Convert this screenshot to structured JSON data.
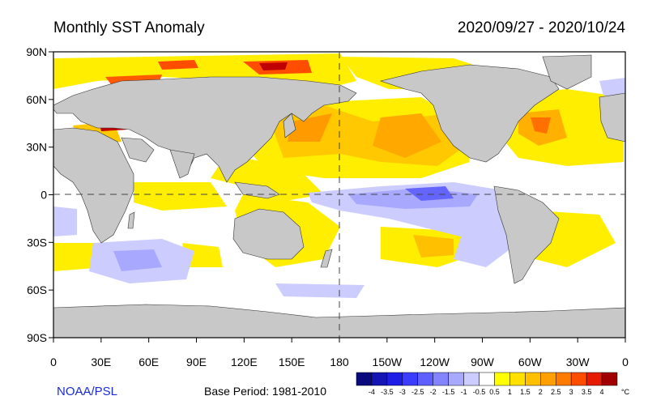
{
  "title": "Monthly SST Anomaly",
  "date_range": "2020/09/27 - 2020/10/24",
  "credit": "NOAA/PSL",
  "base_period": "Base Period: 1981-2010",
  "lat_labels": [
    "90N",
    "60N",
    "30N",
    "0",
    "30S",
    "60S",
    "90S"
  ],
  "lon_labels": [
    "0",
    "30E",
    "60E",
    "90E",
    "120E",
    "150E",
    "180",
    "150W",
    "120W",
    "90W",
    "60W",
    "30W",
    "0"
  ],
  "colorbar": {
    "unit": "°C",
    "labels": [
      "-4",
      "-3.5",
      "-3",
      "-2.5",
      "-2",
      "-1.5",
      "-1",
      "-0.5",
      "0.5",
      "1",
      "1.5",
      "2",
      "2.5",
      "3",
      "3.5",
      "4"
    ],
    "colors": [
      "#0a0a7d",
      "#1515b4",
      "#1e1ee6",
      "#3c3cff",
      "#5f5fff",
      "#8484ff",
      "#a8a8ff",
      "#ccccff",
      "#ffffff",
      "#ffff00",
      "#ffe000",
      "#ffc000",
      "#ffa000",
      "#ff7a00",
      "#ff4d00",
      "#e61a00",
      "#a00000"
    ]
  },
  "colors": {
    "land": "#c8c8c8",
    "ocean": "#ffffff",
    "grid": "#555555",
    "credit": "#1a2bd6"
  }
}
